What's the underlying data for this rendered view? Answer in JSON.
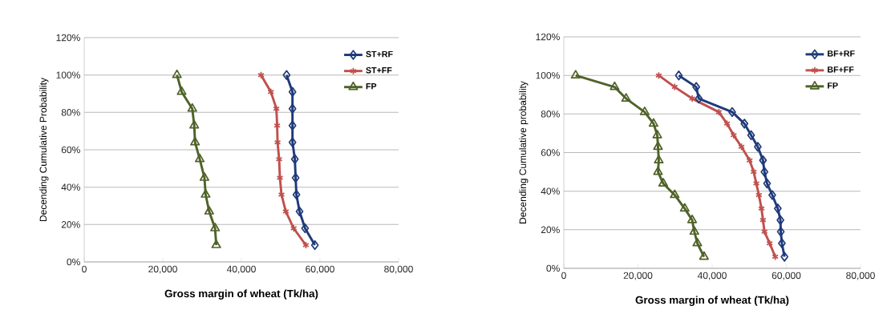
{
  "chart_data": [
    {
      "type": "line",
      "xlabel": "Gross margin of wheat (Tk/ha)",
      "ylabel": "Decending Cumulative Probability",
      "xlim": [
        0,
        80000
      ],
      "ylim": [
        0,
        120
      ],
      "xticks": [
        0,
        {
          "value": 20000,
          "label": "20,000"
        },
        {
          "value": 40000,
          "label": "40,000"
        },
        {
          "value": 60000,
          "label": "60,000"
        },
        {
          "value": 80000,
          "label": "80,000"
        }
      ],
      "yticks": [
        {
          "value": 0,
          "label": "0%"
        },
        {
          "value": 20,
          "label": "20%"
        },
        {
          "value": 40,
          "label": "40%"
        },
        {
          "value": 60,
          "label": "60%"
        },
        {
          "value": 80,
          "label": "80%"
        },
        {
          "value": 100,
          "label": "100%"
        },
        {
          "value": 120,
          "label": "120%"
        }
      ],
      "grid": "y",
      "legend": "top right",
      "series": [
        {
          "name": "ST+RF",
          "color": "#1f3a7a",
          "marker": "diamond",
          "x": [
            51500,
            53000,
            53000,
            53000,
            53000,
            53600,
            53800,
            54000,
            54800,
            56200,
            58700
          ],
          "values": [
            100,
            91,
            82,
            73,
            64,
            55,
            45,
            36,
            27,
            18,
            9
          ]
        },
        {
          "name": "ST+FF",
          "color": "#c0504d",
          "marker": "cross",
          "x": [
            45000,
            47500,
            48900,
            49100,
            49200,
            49600,
            49800,
            50200,
            51300,
            53300,
            56400
          ],
          "values": [
            100,
            91,
            82,
            73,
            64,
            55,
            45,
            36,
            27,
            18,
            9
          ]
        },
        {
          "name": "FP",
          "color": "#4f6228",
          "marker": "triangle",
          "x": [
            23600,
            24800,
            27500,
            28000,
            28200,
            29400,
            30600,
            30900,
            31800,
            33300,
            33600
          ],
          "values": [
            100,
            91,
            82,
            73,
            64,
            55,
            45,
            36,
            27,
            18,
            9
          ]
        }
      ]
    },
    {
      "type": "line",
      "xlabel": "Gross margin of wheat (Tk/ha)",
      "ylabel": "Decending Cumulative probability",
      "xlim": [
        0,
        80000
      ],
      "ylim": [
        0,
        120
      ],
      "xticks": [
        0,
        {
          "value": 20000,
          "label": "20,000"
        },
        {
          "value": 40000,
          "label": "40,000"
        },
        {
          "value": 60000,
          "label": "60,000"
        },
        {
          "value": 80000,
          "label": "80,000"
        }
      ],
      "yticks": [
        {
          "value": 0,
          "label": "0%"
        },
        {
          "value": 20,
          "label": "20%"
        },
        {
          "value": 40,
          "label": "40%"
        },
        {
          "value": 60,
          "label": "60%"
        },
        {
          "value": 80,
          "label": "80%"
        },
        {
          "value": 100,
          "label": "100%"
        },
        {
          "value": 120,
          "label": "120%"
        }
      ],
      "grid": "y",
      "legend": "top right",
      "series": [
        {
          "name": "BF+RF",
          "color": "#1f3a7a",
          "marker": "diamond",
          "x": [
            31000,
            35700,
            36400,
            45400,
            48700,
            50500,
            52300,
            53700,
            54100,
            54800,
            56200,
            57700,
            58400,
            58500,
            58800,
            59500
          ],
          "values": [
            100,
            94,
            88,
            81,
            75,
            69,
            63,
            56,
            50,
            44,
            38,
            31,
            25,
            19,
            13,
            6
          ]
        },
        {
          "name": "BF+FF",
          "color": "#c0504d",
          "marker": "cross",
          "x": [
            25600,
            29900,
            34600,
            41800,
            44000,
            45800,
            47900,
            50100,
            51200,
            51900,
            52600,
            53300,
            53700,
            54100,
            55500,
            57000
          ],
          "values": [
            100,
            94,
            88,
            81,
            75,
            69,
            63,
            56,
            50,
            44,
            38,
            31,
            25,
            19,
            13,
            6
          ]
        },
        {
          "name": "FP",
          "color": "#4f6228",
          "marker": "triangle",
          "x": [
            3200,
            13700,
            16800,
            21800,
            24200,
            25200,
            25400,
            25600,
            25400,
            26800,
            29900,
            32600,
            34600,
            35200,
            36000,
            37800
          ],
          "values": [
            100,
            94,
            88,
            81,
            75,
            69,
            63,
            56,
            50,
            44,
            38,
            31,
            25,
            19,
            13,
            6
          ]
        }
      ]
    }
  ]
}
